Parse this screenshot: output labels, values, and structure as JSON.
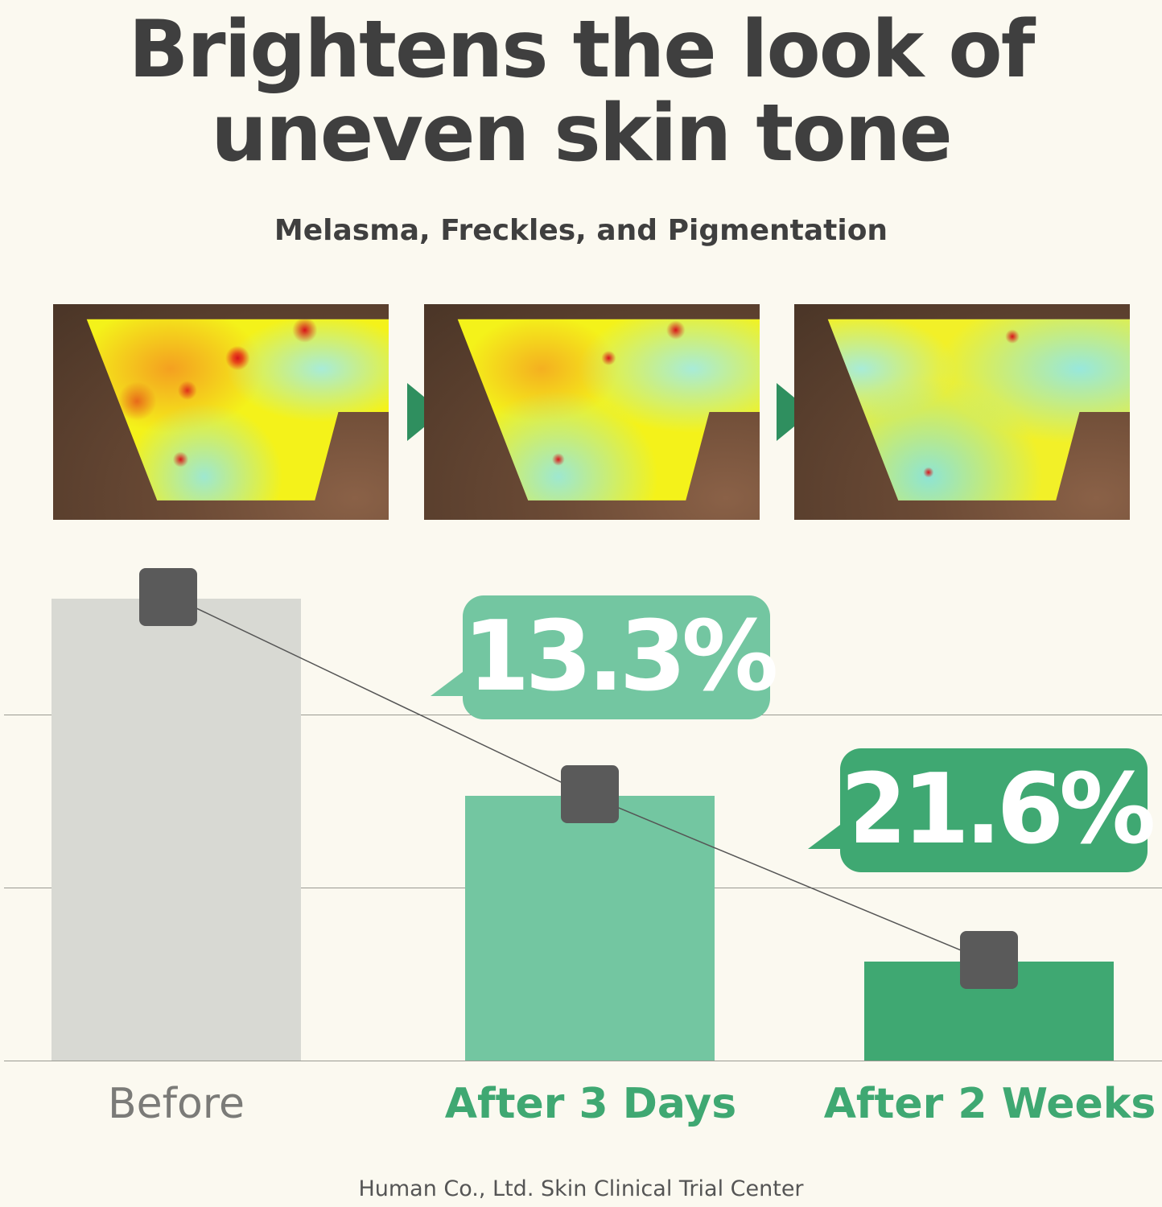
{
  "header": {
    "title_line1": "Brightens the look of",
    "title_line2": "uneven skin tone",
    "subtitle": "Melasma, Freckles, and Pigmentation"
  },
  "images": [
    {
      "name": "before-skin-map"
    },
    {
      "name": "after-3-days-skin-map"
    },
    {
      "name": "after-2-weeks-skin-map"
    }
  ],
  "colors": {
    "background": "#fbf9f0",
    "before_bar": "#d8d9d3",
    "after_3_days_bar": "#73c6a1",
    "after_2_weeks_bar": "#3fa872",
    "marker": "#5a5a5a",
    "arrow": "#2f8f5f",
    "text_dark": "#3f3f3f",
    "before_label": "#7b7b78"
  },
  "chart_data": {
    "type": "bar",
    "categories": [
      "Before",
      "After 3 Days",
      "After 2 Weeks"
    ],
    "values": [
      2.67,
      1.53,
      0.57
    ],
    "ylim": [
      0,
      2.8
    ],
    "grid": true,
    "overlay": "line connecting bar tops with square markers",
    "annotations": [
      {
        "category": "After 3 Days",
        "text": "13.3%"
      },
      {
        "category": "After 2 Weeks",
        "text": "21.6%"
      }
    ],
    "title": "",
    "xlabel": "",
    "ylabel": ""
  },
  "footer": {
    "source": "Human Co., Ltd. Skin Clinical Trial Center"
  }
}
